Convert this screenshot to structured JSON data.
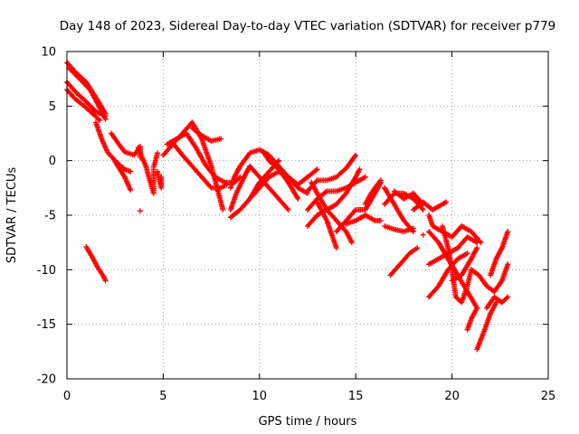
{
  "chart_data": {
    "type": "scatter",
    "title": "Day 148 of 2023, Sidereal Day-to-day VTEC variation (SDTVAR) for receiver p779",
    "xlabel": "GPS time / hours",
    "ylabel": "SDTVAR / TECUs",
    "xlim": [
      0,
      25
    ],
    "ylim": [
      -20,
      10
    ],
    "xticks": [
      0,
      5,
      10,
      15,
      20,
      25
    ],
    "yticks": [
      -20,
      -15,
      -10,
      -5,
      0,
      5,
      10
    ],
    "grid": true,
    "marker": "+",
    "marker_color": "#ff0000",
    "tracks": [
      {
        "points": [
          [
            0.0,
            9.0
          ],
          [
            0.5,
            8.0
          ],
          [
            1.0,
            7.2
          ],
          [
            1.5,
            5.8
          ],
          [
            2.0,
            4.3
          ]
        ]
      },
      {
        "points": [
          [
            0.1,
            8.5
          ],
          [
            0.6,
            7.6
          ],
          [
            1.2,
            6.5
          ],
          [
            1.6,
            5.2
          ],
          [
            2.0,
            3.8
          ]
        ]
      },
      {
        "points": [
          [
            0.0,
            7.2
          ],
          [
            0.5,
            6.2
          ],
          [
            1.0,
            5.4
          ],
          [
            1.5,
            4.5
          ],
          [
            2.0,
            4.1
          ]
        ]
      },
      {
        "points": [
          [
            0.0,
            6.5
          ],
          [
            0.4,
            5.7
          ],
          [
            0.9,
            5.0
          ],
          [
            1.4,
            4.2
          ],
          [
            1.7,
            3.7
          ]
        ]
      },
      {
        "points": [
          [
            1.5,
            3.5
          ],
          [
            1.8,
            2.0
          ],
          [
            2.1,
            0.8
          ],
          [
            2.5,
            0.0
          ],
          [
            3.0,
            -0.8
          ],
          [
            3.3,
            -1.0
          ]
        ]
      },
      {
        "points": [
          [
            2.3,
            2.5
          ],
          [
            2.7,
            1.5
          ],
          [
            3.0,
            0.8
          ],
          [
            3.5,
            0.5
          ],
          [
            3.8,
            1.3
          ]
        ]
      },
      {
        "points": [
          [
            2.5,
            -0.1
          ],
          [
            3.0,
            -1.5
          ],
          [
            3.3,
            -2.7
          ]
        ]
      },
      {
        "points": [
          [
            3.7,
            1.2
          ],
          [
            3.9,
            0.3
          ],
          [
            4.1,
            -0.5
          ],
          [
            4.3,
            -1.8
          ],
          [
            4.5,
            -3.0
          ],
          [
            4.5,
            -0.8
          ]
        ]
      },
      {
        "points": [
          [
            4.5,
            -0.6
          ],
          [
            4.6,
            0.0
          ],
          [
            4.7,
            0.7
          ]
        ]
      },
      {
        "points": [
          [
            4.7,
            -1.0
          ],
          [
            4.9,
            -2.5
          ],
          [
            4.9,
            -1.5
          ]
        ]
      },
      {
        "points": [
          [
            3.8,
            -4.6
          ]
        ]
      },
      {
        "points": [
          [
            3.8,
            1.3
          ],
          [
            3.8,
            0.3
          ]
        ]
      },
      {
        "points": [
          [
            1.0,
            -7.9
          ],
          [
            1.3,
            -8.8
          ],
          [
            1.6,
            -9.8
          ],
          [
            1.9,
            -10.6
          ],
          [
            2.0,
            -11.0
          ]
        ]
      },
      {
        "points": [
          [
            5.0,
            0.5
          ],
          [
            5.5,
            1.5
          ],
          [
            6.0,
            2.5
          ],
          [
            6.5,
            3.5
          ],
          [
            7.0,
            2.0
          ],
          [
            7.5,
            -0.5
          ],
          [
            7.8,
            -2.5
          ],
          [
            8.1,
            -4.5
          ]
        ]
      },
      {
        "points": [
          [
            5.2,
            1.5
          ],
          [
            5.7,
            2.0
          ],
          [
            6.2,
            2.5
          ],
          [
            6.7,
            1.2
          ],
          [
            7.2,
            -0.4
          ],
          [
            7.7,
            -1.5
          ],
          [
            8.2,
            -2.0
          ],
          [
            8.7,
            -2.0
          ],
          [
            9.0,
            -1.5
          ]
        ]
      },
      {
        "points": [
          [
            5.6,
            1.4
          ],
          [
            6.0,
            0.5
          ],
          [
            6.5,
            -0.5
          ],
          [
            7.0,
            -1.5
          ],
          [
            7.5,
            -2.5
          ],
          [
            8.0,
            -2.5
          ],
          [
            8.3,
            -2.2
          ]
        ]
      },
      {
        "points": [
          [
            6.5,
            3.0
          ],
          [
            7.0,
            2.3
          ],
          [
            7.5,
            1.8
          ],
          [
            8.0,
            2.0
          ]
        ]
      },
      {
        "points": [
          [
            8.5,
            -5.2
          ],
          [
            9.0,
            -4.5
          ],
          [
            9.5,
            -3.5
          ],
          [
            10.0,
            -2.0
          ],
          [
            10.5,
            -1.0
          ],
          [
            11.0,
            0.0
          ]
        ]
      },
      {
        "points": [
          [
            8.5,
            -2.5
          ],
          [
            8.7,
            -1.5
          ],
          [
            9.0,
            -0.5
          ],
          [
            9.5,
            0.7
          ],
          [
            10.0,
            1.0
          ],
          [
            10.5,
            0.5
          ],
          [
            11.0,
            -0.5
          ],
          [
            11.5,
            -1.5
          ],
          [
            12.0,
            -2.2
          ],
          [
            12.5,
            -1.5
          ],
          [
            13.0,
            -0.8
          ]
        ]
      },
      {
        "points": [
          [
            8.5,
            -4.5
          ],
          [
            8.8,
            -3.0
          ],
          [
            9.2,
            -1.5
          ],
          [
            9.5,
            -0.5
          ],
          [
            10.0,
            -1.5
          ],
          [
            10.5,
            -2.5
          ],
          [
            11.0,
            -3.5
          ],
          [
            11.5,
            -4.5
          ]
        ]
      },
      {
        "points": [
          [
            9.5,
            -3.5
          ],
          [
            10.0,
            -2.5
          ],
          [
            10.5,
            -1.5
          ],
          [
            11.0,
            -1.0
          ],
          [
            11.5,
            -1.5
          ],
          [
            12.0,
            -2.5
          ],
          [
            12.5,
            -3.0
          ]
        ]
      },
      {
        "points": [
          [
            10.2,
            0.8
          ],
          [
            10.5,
            0.0
          ],
          [
            11.0,
            -0.8
          ],
          [
            11.5,
            -2.0
          ],
          [
            12.0,
            -3.5
          ]
        ]
      },
      {
        "points": [
          [
            12.5,
            -2.8
          ],
          [
            13.0,
            -1.8
          ],
          [
            13.5,
            -1.8
          ],
          [
            14.0,
            -1.5
          ],
          [
            14.5,
            -0.7
          ],
          [
            15.0,
            0.5
          ]
        ]
      },
      {
        "points": [
          [
            12.5,
            -4.5
          ],
          [
            13.0,
            -3.5
          ],
          [
            13.5,
            -2.8
          ],
          [
            14.0,
            -2.8
          ],
          [
            14.5,
            -2.5
          ],
          [
            15.0,
            -2.0
          ],
          [
            15.5,
            -1.5
          ]
        ]
      },
      {
        "points": [
          [
            12.5,
            -6.0
          ],
          [
            13.0,
            -5.0
          ],
          [
            13.5,
            -4.5
          ],
          [
            14.0,
            -4.0
          ],
          [
            14.5,
            -3.0
          ],
          [
            15.0,
            -1.5
          ],
          [
            15.2,
            -0.8
          ]
        ]
      },
      {
        "points": [
          [
            12.7,
            -2.0
          ],
          [
            13.0,
            -3.0
          ],
          [
            13.5,
            -4.5
          ],
          [
            14.0,
            -5.5
          ],
          [
            14.5,
            -6.5
          ],
          [
            14.8,
            -7.5
          ]
        ]
      },
      {
        "points": [
          [
            13.0,
            -3.8
          ],
          [
            13.5,
            -5.5
          ],
          [
            13.8,
            -7.0
          ],
          [
            14.0,
            -8.0
          ]
        ]
      },
      {
        "points": [
          [
            14.0,
            -6.5
          ],
          [
            14.5,
            -5.5
          ],
          [
            15.0,
            -4.5
          ],
          [
            15.5,
            -4.5
          ],
          [
            16.0,
            -3.0
          ],
          [
            16.3,
            -2.0
          ]
        ]
      },
      {
        "points": [
          [
            15.5,
            -4.0
          ],
          [
            15.8,
            -3.0
          ],
          [
            16.0,
            -2.5
          ],
          [
            16.3,
            -1.8
          ]
        ]
      },
      {
        "points": [
          [
            14.5,
            -5.8
          ],
          [
            15.0,
            -5.5
          ],
          [
            15.5,
            -5.0
          ],
          [
            16.0,
            -5.5
          ],
          [
            16.3,
            -5.5
          ]
        ]
      },
      {
        "points": [
          [
            16.5,
            -6.0
          ],
          [
            17.0,
            -6.3
          ],
          [
            17.5,
            -6.5
          ],
          [
            18.0,
            -6.2
          ]
        ]
      },
      {
        "points": [
          [
            16.5,
            -4.0
          ],
          [
            17.0,
            -3.0
          ],
          [
            17.5,
            -3.0
          ],
          [
            18.0,
            -3.5
          ],
          [
            18.5,
            -4.5
          ]
        ]
      },
      {
        "points": [
          [
            16.5,
            -2.5
          ],
          [
            17.0,
            -4.0
          ],
          [
            17.5,
            -5.5
          ],
          [
            18.0,
            -6.5
          ]
        ]
      },
      {
        "points": [
          [
            17.0,
            -2.8
          ],
          [
            17.5,
            -3.5
          ],
          [
            18.0,
            -3.0
          ],
          [
            18.5,
            -4.0
          ]
        ]
      },
      {
        "points": [
          [
            16.8,
            -10.5
          ],
          [
            17.3,
            -9.5
          ],
          [
            17.8,
            -8.5
          ],
          [
            18.2,
            -8.0
          ]
        ]
      },
      {
        "points": [
          [
            18.0,
            -4.5
          ],
          [
            18.5,
            -3.8
          ],
          [
            19.0,
            -4.5
          ],
          [
            19.5,
            -4.0
          ],
          [
            19.7,
            -3.8
          ]
        ]
      },
      {
        "points": [
          [
            18.5,
            -6.8
          ]
        ]
      },
      {
        "points": [
          [
            18.8,
            -5.0
          ],
          [
            19.0,
            -6.0
          ],
          [
            19.5,
            -6.5
          ],
          [
            20.0,
            -7.0
          ],
          [
            20.5,
            -6.0
          ],
          [
            21.0,
            -6.5
          ],
          [
            21.5,
            -7.5
          ]
        ]
      },
      {
        "points": [
          [
            18.8,
            -6.5
          ],
          [
            19.3,
            -7.5
          ],
          [
            19.8,
            -9.0
          ],
          [
            20.3,
            -10.5
          ],
          [
            20.8,
            -12.0
          ],
          [
            21.3,
            -13.5
          ]
        ]
      },
      {
        "points": [
          [
            18.8,
            -12.5
          ],
          [
            19.3,
            -11.5
          ],
          [
            19.8,
            -10.0
          ],
          [
            20.3,
            -9.0
          ],
          [
            20.8,
            -8.5
          ]
        ]
      },
      {
        "points": [
          [
            18.8,
            -9.5
          ],
          [
            19.3,
            -9.0
          ],
          [
            19.8,
            -8.5
          ],
          [
            20.3,
            -8.0
          ],
          [
            20.8,
            -7.0
          ],
          [
            21.3,
            -7.5
          ]
        ]
      },
      {
        "points": [
          [
            19.5,
            -6.0
          ],
          [
            19.8,
            -8.0
          ],
          [
            20.0,
            -10.0
          ],
          [
            20.2,
            -12.5
          ],
          [
            20.5,
            -13.0
          ],
          [
            20.8,
            -11.5
          ],
          [
            21.0,
            -10.0
          ]
        ]
      },
      {
        "points": [
          [
            20.0,
            -11.0
          ],
          [
            20.5,
            -10.5
          ],
          [
            21.0,
            -9.0
          ],
          [
            21.3,
            -8.0
          ]
        ]
      },
      {
        "points": [
          [
            21.0,
            -10.0
          ],
          [
            21.4,
            -10.5
          ],
          [
            21.8,
            -11.5
          ],
          [
            22.2,
            -12.0
          ],
          [
            22.6,
            -11.0
          ],
          [
            22.9,
            -9.5
          ]
        ]
      },
      {
        "points": [
          [
            21.3,
            -17.3
          ],
          [
            21.7,
            -15.5
          ],
          [
            22.0,
            -14.0
          ],
          [
            22.3,
            -13.0
          ]
        ]
      },
      {
        "points": [
          [
            21.8,
            -13.5
          ],
          [
            22.2,
            -12.5
          ],
          [
            22.6,
            -13.0
          ],
          [
            22.9,
            -12.5
          ]
        ]
      },
      {
        "points": [
          [
            22.0,
            -10.5
          ],
          [
            22.3,
            -9.0
          ],
          [
            22.6,
            -8.0
          ],
          [
            22.9,
            -6.5
          ]
        ]
      },
      {
        "points": [
          [
            20.8,
            -15.5
          ],
          [
            21.0,
            -14.5
          ],
          [
            21.3,
            -13.5
          ]
        ]
      }
    ]
  }
}
